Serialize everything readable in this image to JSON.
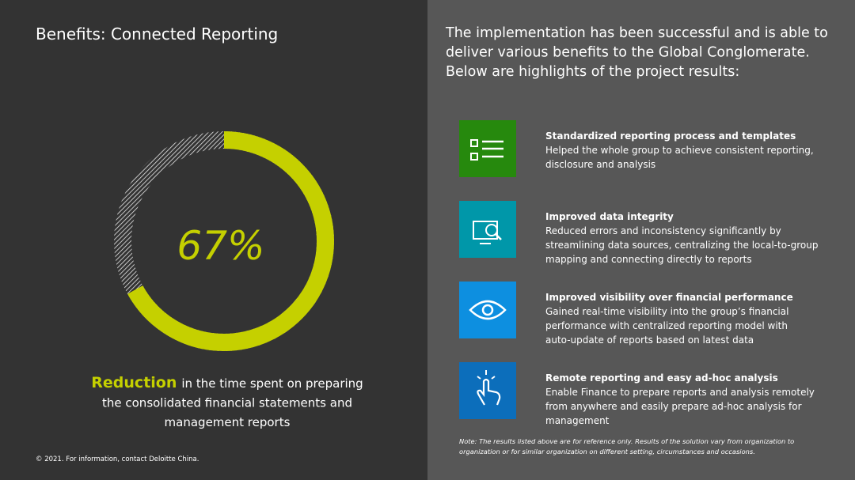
{
  "title": "Benefits: Connected Reporting",
  "metric": {
    "value": 67,
    "label": "67%"
  },
  "caption": {
    "lead": "Reduction",
    "lines": [
      "in the time spent on preparing",
      "the consolidated financial statements and",
      "management reports"
    ]
  },
  "intro": [
    "The implementation has been successful and is able to",
    "deliver various benefits to the Global Conglomerate.",
    "Below are highlights of the project results:"
  ],
  "benefits": [
    {
      "title": "Standardized reporting process and templates",
      "lines": [
        "Helped the whole group to achieve consistent reporting,",
        "disclosure and analysis"
      ]
    },
    {
      "title": "Improved data integrity",
      "lines": [
        "Reduced errors and inconsistency significantly by",
        "streamlining data sources, centralizing the local-to-group",
        "mapping and connecting directly to reports"
      ]
    },
    {
      "title": "Improved visibility over financial performance",
      "lines": [
        "Gained real-time visibility into the group’s financial",
        "performance with centralized reporting model with",
        "auto-update of reports based on latest data"
      ]
    },
    {
      "title": "Remote reporting and easy ad-hoc analysis",
      "lines": [
        "Enable Finance to prepare reports and analysis remotely",
        "from anywhere and easily prepare ad-hoc analysis for",
        "management"
      ]
    }
  ],
  "note": [
    "Note: The results listed above are for reference only. Results of the solution vary from organization to",
    "organization or for similar organization on different setting, circumstances and occasions."
  ],
  "footer": "© 2021. For information, contact Deloitte China."
}
